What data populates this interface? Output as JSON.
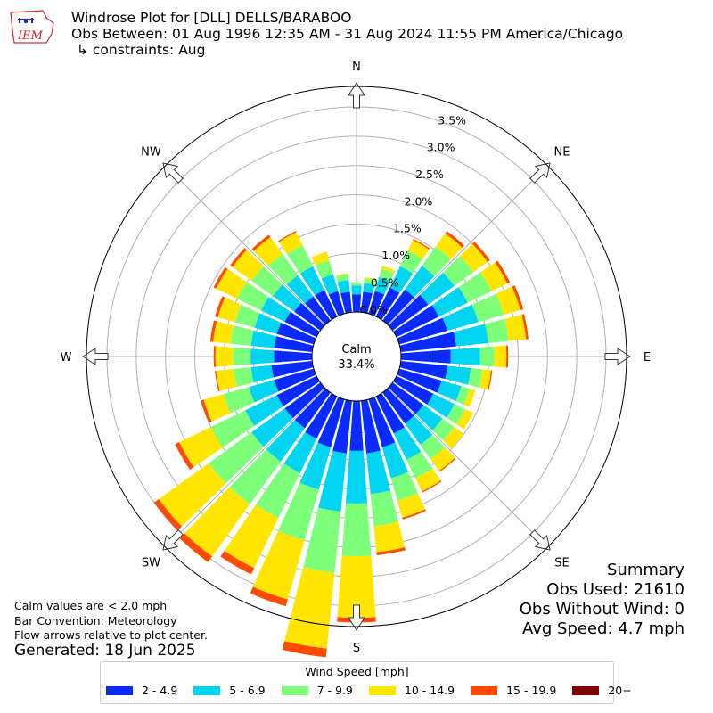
{
  "header": {
    "line1": "Windrose Plot for [DLL] DELLS/BARABOO",
    "line2": "Obs Between: 01 Aug 1996 12:35 AM - 31 Aug 2024 11:55 PM America/Chicago",
    "line3": "↳ constraints: Aug",
    "logo_text": "IEM"
  },
  "notes": {
    "line1": "Calm values are < 2.0 mph",
    "line2": "Bar Convention: Meteorology",
    "line3": "Flow arrows relative to plot center."
  },
  "generated": "Generated: 18 Jun 2025",
  "summary": {
    "title": "Summary",
    "obs_used": "Obs Used: 21610",
    "obs_without_wind": "Obs Without Wind: 0",
    "avg_speed": "Avg Speed: 4.7 mph"
  },
  "chart_data": {
    "type": "windrose",
    "calm_label": "Calm",
    "calm_value": "33.4%",
    "directions": [
      "N",
      "NE",
      "E",
      "SE",
      "S",
      "SW",
      "W",
      "NW"
    ],
    "radial_ticks": [
      "0.0%",
      "0.5%",
      "1.0%",
      "1.5%",
      "2.0%",
      "2.5%",
      "3.0%",
      "3.5%"
    ],
    "radial_max": 3.85,
    "legend_title": "Wind Speed [mph]",
    "bins": [
      {
        "label": "2 - 4.9",
        "color": "#0a2bff"
      },
      {
        "label": "5 - 6.9",
        "color": "#00d4f0"
      },
      {
        "label": "7 - 9.9",
        "color": "#7dff7a"
      },
      {
        "label": "10 - 14.9",
        "color": "#ffe500"
      },
      {
        "label": "15 - 19.9",
        "color": "#ff4a00"
      },
      {
        "label": "20+",
        "color": "#800000"
      }
    ],
    "sector_angles_deg": [
      0,
      10,
      20,
      30,
      40,
      50,
      60,
      70,
      80,
      90,
      100,
      110,
      120,
      130,
      140,
      150,
      160,
      170,
      180,
      190,
      200,
      210,
      220,
      230,
      240,
      250,
      260,
      270,
      280,
      290,
      300,
      310,
      320,
      330,
      340,
      350
    ],
    "sectors": [
      [
        0.3,
        0.15,
        0.05,
        0.0,
        0.0,
        0.0
      ],
      [
        0.35,
        0.15,
        0.08,
        0.02,
        0.0,
        0.0
      ],
      [
        0.4,
        0.25,
        0.15,
        0.05,
        0.0,
        0.0
      ],
      [
        0.55,
        0.4,
        0.3,
        0.2,
        0.02,
        0.0
      ],
      [
        0.65,
        0.5,
        0.4,
        0.28,
        0.05,
        0.0
      ],
      [
        0.75,
        0.55,
        0.4,
        0.3,
        0.05,
        0.0
      ],
      [
        0.8,
        0.55,
        0.45,
        0.3,
        0.05,
        0.0
      ],
      [
        0.85,
        0.55,
        0.45,
        0.3,
        0.05,
        0.0
      ],
      [
        0.95,
        0.55,
        0.35,
        0.3,
        0.04,
        0.0
      ],
      [
        0.85,
        0.5,
        0.25,
        0.2,
        0.03,
        0.0
      ],
      [
        0.8,
        0.4,
        0.2,
        0.15,
        0.02,
        0.0
      ],
      [
        0.75,
        0.35,
        0.15,
        0.1,
        0.0,
        0.0
      ],
      [
        0.7,
        0.4,
        0.2,
        0.15,
        0.0,
        0.0
      ],
      [
        0.65,
        0.4,
        0.25,
        0.2,
        0.0,
        0.0
      ],
      [
        0.65,
        0.45,
        0.3,
        0.25,
        0.02,
        0.0
      ],
      [
        0.7,
        0.5,
        0.35,
        0.25,
        0.02,
        0.0
      ],
      [
        0.85,
        0.55,
        0.4,
        0.3,
        0.03,
        0.0
      ],
      [
        0.9,
        0.7,
        0.55,
        0.45,
        0.05,
        0.0
      ],
      [
        0.85,
        0.9,
        0.9,
        1.05,
        0.08,
        0.0
      ],
      [
        0.9,
        1.0,
        1.05,
        1.3,
        0.15,
        0.0
      ],
      [
        0.85,
        0.75,
        0.9,
        1.05,
        0.12,
        0.0
      ],
      [
        0.8,
        0.65,
        0.85,
        0.95,
        0.12,
        0.0
      ],
      [
        0.75,
        0.7,
        0.9,
        1.1,
        0.12,
        0.0
      ],
      [
        0.75,
        0.7,
        0.9,
        1.05,
        0.1,
        0.0
      ],
      [
        0.75,
        0.6,
        0.65,
        0.6,
        0.08,
        0.0
      ],
      [
        0.7,
        0.45,
        0.45,
        0.35,
        0.05,
        0.0
      ],
      [
        0.7,
        0.35,
        0.3,
        0.3,
        0.02,
        0.0
      ],
      [
        0.65,
        0.4,
        0.3,
        0.3,
        0.03,
        0.0
      ],
      [
        0.65,
        0.4,
        0.35,
        0.3,
        0.05,
        0.0
      ],
      [
        0.65,
        0.4,
        0.35,
        0.3,
        0.05,
        0.0
      ],
      [
        0.6,
        0.45,
        0.45,
        0.4,
        0.05,
        0.0
      ],
      [
        0.55,
        0.45,
        0.45,
        0.4,
        0.05,
        0.0
      ],
      [
        0.5,
        0.45,
        0.45,
        0.35,
        0.05,
        0.0
      ],
      [
        0.5,
        0.45,
        0.4,
        0.25,
        0.02,
        0.0
      ],
      [
        0.4,
        0.3,
        0.25,
        0.15,
        0.0,
        0.0
      ],
      [
        0.35,
        0.2,
        0.1,
        0.02,
        0.0,
        0.0
      ]
    ]
  }
}
